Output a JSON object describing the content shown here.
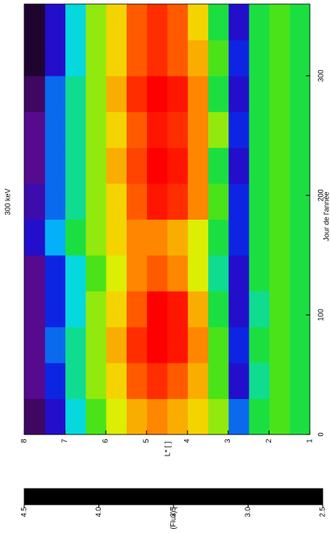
{
  "chart_data": {
    "type": "heatmap",
    "title": "300 keV",
    "xlabel": "Jour de l'année",
    "ylabel": "L* [ ]",
    "x_edges": [
      0,
      30,
      60,
      90,
      120,
      150,
      180,
      210,
      240,
      270,
      300,
      330,
      360
    ],
    "y_edges": [
      1,
      1.5,
      2,
      2.5,
      3,
      3.5,
      4,
      4.5,
      5,
      5.5,
      6,
      6.5,
      7,
      7.5,
      8
    ],
    "z": [
      [
        3.6,
        3.7,
        3.6,
        3.2,
        3.8,
        4.0,
        4.1,
        4.2,
        4.1,
        3.9,
        3.7,
        3.4,
        3.0,
        2.7
      ],
      [
        3.6,
        3.7,
        3.5,
        3.0,
        3.7,
        4.1,
        4.3,
        4.4,
        4.3,
        4.0,
        3.8,
        3.5,
        3.1,
        2.8
      ],
      [
        3.6,
        3.7,
        3.6,
        3.1,
        3.7,
        4.2,
        4.45,
        4.5,
        4.4,
        4.1,
        3.8,
        3.5,
        3.2,
        2.8
      ],
      [
        3.6,
        3.7,
        3.5,
        3.0,
        3.6,
        4.1,
        4.45,
        4.5,
        4.3,
        4.0,
        3.8,
        3.4,
        3.1,
        2.8
      ],
      [
        3.6,
        3.7,
        3.6,
        3.0,
        3.5,
        3.9,
        4.2,
        4.3,
        4.2,
        3.9,
        3.7,
        3.4,
        3.1,
        2.8
      ],
      [
        3.6,
        3.7,
        3.6,
        3.1,
        3.6,
        3.9,
        4.1,
        4.2,
        4.2,
        4.0,
        3.8,
        3.6,
        3.3,
        3.0
      ],
      [
        3.6,
        3.7,
        3.6,
        3.1,
        3.7,
        4.2,
        4.4,
        4.45,
        4.3,
        4.0,
        3.8,
        3.5,
        3.2,
        2.9
      ],
      [
        3.6,
        3.7,
        3.6,
        3.0,
        3.6,
        4.2,
        4.45,
        4.5,
        4.35,
        4.1,
        3.8,
        3.5,
        3.2,
        2.8
      ],
      [
        3.6,
        3.7,
        3.6,
        3.1,
        3.8,
        4.2,
        4.4,
        4.45,
        4.3,
        4.0,
        3.8,
        3.5,
        3.2,
        2.8
      ],
      [
        3.6,
        3.7,
        3.6,
        3.0,
        3.6,
        4.2,
        4.45,
        4.5,
        4.4,
        4.1,
        3.8,
        3.5,
        3.2,
        2.7
      ],
      [
        3.6,
        3.7,
        3.6,
        3.1,
        3.7,
        4.1,
        4.3,
        4.4,
        4.3,
        4.0,
        3.8,
        3.4,
        3.0,
        2.6
      ],
      [
        3.6,
        3.7,
        3.6,
        3.0,
        3.6,
        4.0,
        4.3,
        4.4,
        4.3,
        4.0,
        3.8,
        3.4,
        3.0,
        2.6
      ]
    ],
    "xlim": [
      0,
      360
    ],
    "xticks": [
      0,
      100,
      200,
      300
    ],
    "ylim": [
      1,
      8
    ],
    "yticks": [
      1,
      2,
      3,
      4,
      5,
      6,
      7,
      8
    ],
    "colorscale": [
      "#000000",
      "#5a0a8a",
      "#1010e0",
      "#00d8ff",
      "#20e020",
      "#f0f000",
      "#ff8000",
      "#ff0000"
    ],
    "colorbar": {
      "label": "log(Flux) [ ]",
      "lim": [
        2.5,
        4.5
      ],
      "ticks": [
        4.5,
        {
          "value": 4.0,
          "label": "4.0"
        },
        3.5,
        {
          "value": 3.0,
          "label": "3.0"
        },
        2.5
      ]
    }
  }
}
